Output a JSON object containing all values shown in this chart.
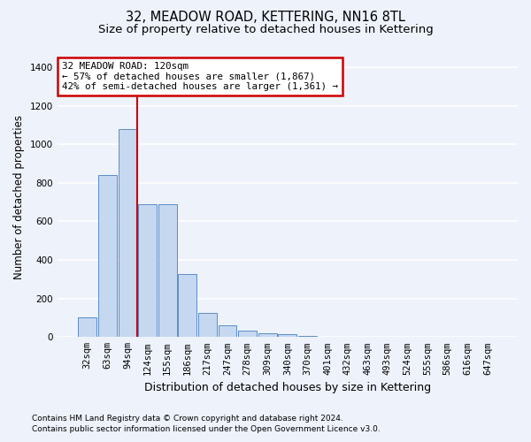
{
  "title1": "32, MEADOW ROAD, KETTERING, NN16 8TL",
  "title2": "Size of property relative to detached houses in Kettering",
  "xlabel": "Distribution of detached houses by size in Kettering",
  "ylabel": "Number of detached properties",
  "categories": [
    "32sqm",
    "63sqm",
    "94sqm",
    "124sqm",
    "155sqm",
    "186sqm",
    "217sqm",
    "247sqm",
    "278sqm",
    "309sqm",
    "340sqm",
    "370sqm",
    "401sqm",
    "432sqm",
    "463sqm",
    "493sqm",
    "524sqm",
    "555sqm",
    "586sqm",
    "616sqm",
    "647sqm"
  ],
  "values": [
    100,
    840,
    1080,
    690,
    690,
    325,
    125,
    60,
    35,
    20,
    15,
    8,
    3,
    0,
    0,
    0,
    0,
    0,
    0,
    0,
    0
  ],
  "bar_color": "#c5d8f0",
  "bar_edge_color": "#5b8dc8",
  "vline_color": "#cc0000",
  "vline_x_idx": 2.5,
  "annotation_text": "32 MEADOW ROAD: 120sqm\n← 57% of detached houses are smaller (1,867)\n42% of semi-detached houses are larger (1,361) →",
  "annotation_box_color": "white",
  "annotation_box_edge_color": "#cc0000",
  "ylim": [
    0,
    1450
  ],
  "yticks": [
    0,
    200,
    400,
    600,
    800,
    1000,
    1200,
    1400
  ],
  "footnote1": "Contains HM Land Registry data © Crown copyright and database right 2024.",
  "footnote2": "Contains public sector information licensed under the Open Government Licence v3.0.",
  "bg_color": "#eef2fb",
  "plot_bg_color": "#eef2fb",
  "grid_color": "white",
  "title1_fontsize": 10.5,
  "title2_fontsize": 9.5,
  "tick_fontsize": 7.5,
  "ylabel_fontsize": 8.5,
  "xlabel_fontsize": 9,
  "footnote_fontsize": 6.5
}
